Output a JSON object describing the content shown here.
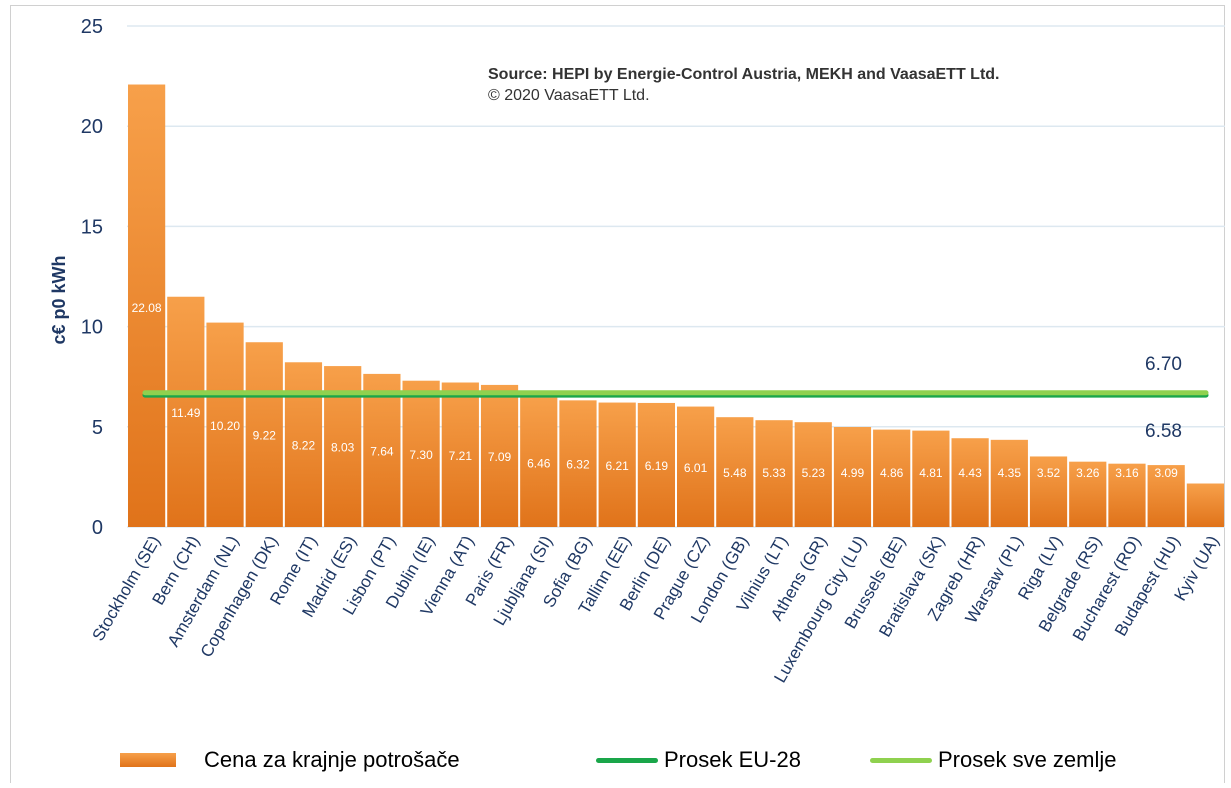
{
  "chart_data": {
    "type": "bar",
    "title": "",
    "source_line1": "Source: HEPI by Energie-Control Austria, MEKH and VaasaETT Ltd.",
    "source_line2": "© 2020 VaasaETT Ltd.",
    "ylabel": "c€ p0 kWh",
    "xlabel": "",
    "ylim": [
      0,
      25
    ],
    "yticks": [
      "0",
      "5",
      "10",
      "15",
      "20",
      "25"
    ],
    "grid": true,
    "categories": [
      "Stockholm (SE)",
      "Bern (CH)",
      "Amsterdam (NL)",
      "Copenhagen (DK)",
      "Rome (IT)",
      "Madrid (ES)",
      "Lisbon (PT)",
      "Dublin (IE)",
      "Vienna (AT)",
      "Paris (FR)",
      "Ljubljana (SI)",
      "Sofia (BG)",
      "Tallinn (EE)",
      "Berlin (DE)",
      "Prague (CZ)",
      "London (GB)",
      "Vilnius (LT)",
      "Athens (GR)",
      "Luxembourg City (LU)",
      "Brussels (BE)",
      "Bratislava (SK)",
      "Zagreb (HR)",
      "Warsaw (PL)",
      "Riga (LV)",
      "Belgrade (RS)",
      "Bucharest (RO)",
      "Budapest (HU)",
      "Kyiv (UA)"
    ],
    "series": [
      {
        "name": "Cena za krajnje potrošače",
        "color": "#ee8a2e",
        "values": [
          22.08,
          11.49,
          10.2,
          9.22,
          8.22,
          8.03,
          7.64,
          7.3,
          7.21,
          7.09,
          6.46,
          6.32,
          6.21,
          6.19,
          6.01,
          5.48,
          5.33,
          5.23,
          4.99,
          4.86,
          4.81,
          4.43,
          4.35,
          3.52,
          3.26,
          3.16,
          3.09,
          2.17
        ],
        "labels": [
          "22.08",
          "11.49",
          "10.20",
          "9.22",
          "8.22",
          "8.03",
          "7.64",
          "7.30",
          "7.21",
          "7.09",
          "6.46",
          "6.32",
          "6.21",
          "6.19",
          "6.01",
          "5.48",
          "5.33",
          "5.23",
          "4.99",
          "4.86",
          "4.81",
          "4.43",
          "4.35",
          "3.52",
          "3.26",
          "3.16",
          "3.09",
          "2.17"
        ]
      }
    ],
    "reference_lines": [
      {
        "name": "Prosek EU-28",
        "value": 6.58,
        "label": "6.58",
        "color": "#1aa64a"
      },
      {
        "name": "Prosek sve zemlje",
        "value": 6.7,
        "label": "6.70",
        "color": "#8fd14f"
      }
    ],
    "legend": [
      "Cena za krajnje potrošače",
      "Prosek EU-28",
      "Prosek sve zemlje"
    ],
    "legend_position": "bottom",
    "colors": {
      "bar_top": "#f7a04a",
      "bar_bottom": "#e0731a",
      "grid": "#dde8f0",
      "axis_text": "#1f3864"
    }
  }
}
